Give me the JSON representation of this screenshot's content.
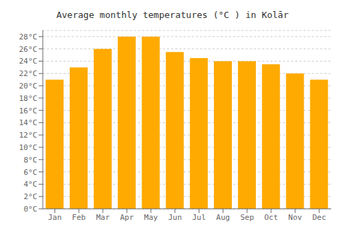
{
  "chart_data": {
    "type": "bar",
    "title": "Average monthly temperatures (°C ) in Kolār",
    "categories": [
      "Jan",
      "Feb",
      "Mar",
      "Apr",
      "May",
      "Jun",
      "Jul",
      "Aug",
      "Sep",
      "Oct",
      "Nov",
      "Dec"
    ],
    "values": [
      21,
      23,
      26,
      28,
      28,
      25.5,
      24.5,
      24,
      24,
      23.5,
      22,
      21
    ],
    "color": "#FFAA00",
    "ylim": [
      0,
      29
    ],
    "yticks": [
      {
        "value": 0,
        "label": "0°C"
      },
      {
        "value": 2,
        "label": "2°C"
      },
      {
        "value": 4,
        "label": "4°C"
      },
      {
        "value": 6,
        "label": "6°C"
      },
      {
        "value": 8,
        "label": "8°C"
      },
      {
        "value": 10,
        "label": "10°C"
      },
      {
        "value": 12,
        "label": "12°C"
      },
      {
        "value": 14,
        "label": "14°C"
      },
      {
        "value": 16,
        "label": "16°C"
      },
      {
        "value": 18,
        "label": "18°C"
      },
      {
        "value": 20,
        "label": "20°C"
      },
      {
        "value": 22,
        "label": "22°C"
      },
      {
        "value": 24,
        "label": "24°C"
      },
      {
        "value": 26,
        "label": "26°C"
      },
      {
        "value": 28,
        "label": "28°C"
      }
    ],
    "grid": true
  }
}
